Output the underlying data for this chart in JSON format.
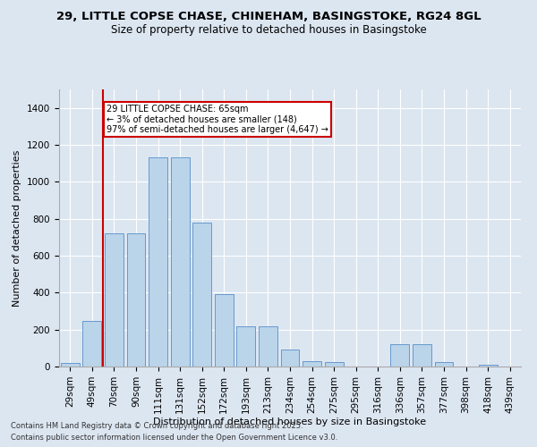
{
  "title1": "29, LITTLE COPSE CHASE, CHINEHAM, BASINGSTOKE, RG24 8GL",
  "title2": "Size of property relative to detached houses in Basingstoke",
  "xlabel": "Distribution of detached houses by size in Basingstoke",
  "ylabel": "Number of detached properties",
  "categories": [
    "29sqm",
    "49sqm",
    "70sqm",
    "90sqm",
    "111sqm",
    "131sqm",
    "152sqm",
    "172sqm",
    "193sqm",
    "213sqm",
    "234sqm",
    "254sqm",
    "275sqm",
    "295sqm",
    "316sqm",
    "336sqm",
    "357sqm",
    "377sqm",
    "398sqm",
    "418sqm",
    "439sqm"
  ],
  "values": [
    20,
    245,
    720,
    720,
    1130,
    1130,
    780,
    390,
    220,
    220,
    90,
    30,
    25,
    0,
    0,
    120,
    120,
    25,
    0,
    8,
    0
  ],
  "bar_color": "#bad4ea",
  "bar_edge_color": "#6699cc",
  "marker_color": "#cc0000",
  "annotation_text": "29 LITTLE COPSE CHASE: 65sqm\n← 3% of detached houses are smaller (148)\n97% of semi-detached houses are larger (4,647) →",
  "annotation_box_color": "#ffffff",
  "annotation_box_edge": "#cc0000",
  "ylim": [
    0,
    1500
  ],
  "yticks": [
    0,
    200,
    400,
    600,
    800,
    1000,
    1200,
    1400
  ],
  "footer1": "Contains HM Land Registry data © Crown copyright and database right 2025.",
  "footer2": "Contains public sector information licensed under the Open Government Licence v3.0.",
  "background_color": "#dce6f1",
  "title1_fontsize": 9.5,
  "title2_fontsize": 8.5,
  "xlabel_fontsize": 8,
  "ylabel_fontsize": 8,
  "tick_fontsize": 7.5,
  "annot_fontsize": 7,
  "footer_fontsize": 6
}
